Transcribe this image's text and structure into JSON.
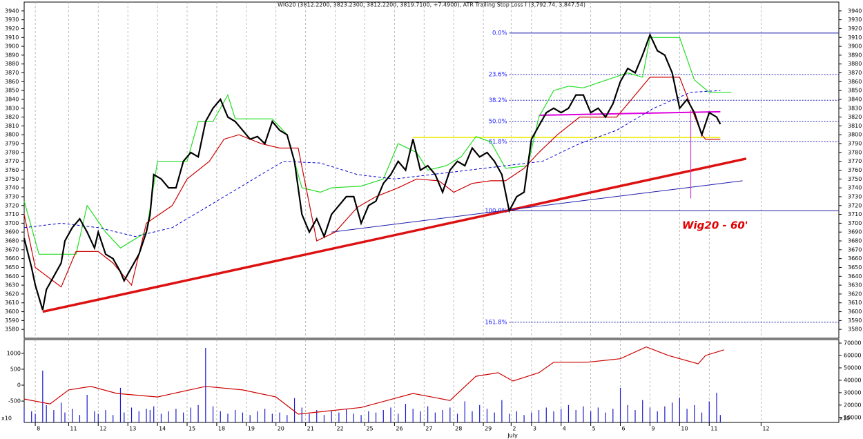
{
  "chart_data": [
    {
      "type": "line",
      "title": "WIG20 (3812.2200, 3823.2300, 3812.2200, 3819.7100, +7.4900), ATR Trailing Stop Loss I (3,792.74, 3,847.54)",
      "xlim": [
        0,
        220
      ],
      "ylim": [
        3570,
        3950
      ],
      "yticks": [
        3580,
        3590,
        3600,
        3610,
        3620,
        3630,
        3640,
        3650,
        3660,
        3670,
        3680,
        3690,
        3700,
        3710,
        3720,
        3730,
        3740,
        3750,
        3760,
        3770,
        3780,
        3790,
        3800,
        3810,
        3820,
        3830,
        3840,
        3850,
        3860,
        3870,
        3880,
        3890,
        3900,
        3910,
        3920,
        3930,
        3940
      ],
      "series": [
        {
          "color": "#22dd22",
          "width": 1.2,
          "dash": "",
          "x": [
            0,
            4,
            14,
            17,
            22,
            26,
            33,
            36,
            44,
            47,
            51,
            55,
            57,
            67,
            71,
            75,
            80,
            83,
            91,
            97,
            101,
            106,
            109,
            114,
            118,
            122,
            126,
            130,
            136,
            139,
            143,
            147,
            151,
            163,
            167,
            169,
            177,
            181,
            185,
            191
          ],
          "values": [
            3725,
            3665,
            3665,
            3720,
            3690,
            3672,
            3690,
            3770,
            3770,
            3815,
            3815,
            3845,
            3818,
            3818,
            3800,
            3740,
            3735,
            3740,
            3742,
            3750,
            3790,
            3780,
            3760,
            3765,
            3775,
            3798,
            3792,
            3762,
            3765,
            3820,
            3850,
            3855,
            3853,
            3870,
            3865,
            3910,
            3910,
            3862,
            3848,
            3848
          ]
        },
        {
          "color": "#cc0000",
          "width": 1.2,
          "dash": "",
          "x": [
            0,
            3,
            10,
            14,
            20,
            24,
            29,
            33,
            40,
            44,
            50,
            54,
            58,
            64,
            69,
            74,
            79,
            84,
            90,
            95,
            101,
            106,
            112,
            116,
            121,
            126,
            130,
            135,
            139,
            144,
            150,
            160,
            165,
            169,
            177,
            183,
            184,
            188
          ],
          "values": [
            3710,
            3650,
            3628,
            3668,
            3668,
            3655,
            3630,
            3700,
            3720,
            3750,
            3770,
            3795,
            3800,
            3790,
            3785,
            3785,
            3680,
            3690,
            3718,
            3730,
            3740,
            3750,
            3748,
            3735,
            3745,
            3748,
            3748,
            3762,
            3780,
            3800,
            3820,
            3820,
            3845,
            3865,
            3865,
            3800,
            3795,
            3795
          ]
        },
        {
          "color": "#0000cc",
          "width": 1,
          "dash": "4 3",
          "x": [
            0,
            10,
            20,
            30,
            40,
            50,
            60,
            70,
            80,
            90,
            100,
            110,
            120,
            130,
            140,
            150,
            160,
            170,
            180,
            188
          ],
          "values": [
            3695,
            3700,
            3695,
            3685,
            3695,
            3720,
            3745,
            3770,
            3768,
            3755,
            3750,
            3755,
            3760,
            3765,
            3770,
            3790,
            3805,
            3830,
            3848,
            3850
          ]
        },
        {
          "color": "#000000",
          "width": 2.2,
          "dash": "",
          "x": [
            0,
            2,
            3,
            5,
            6,
            8,
            10,
            11,
            13,
            15,
            17,
            19,
            20,
            22,
            24,
            26,
            27,
            29,
            31,
            33,
            34,
            35,
            37,
            39,
            41,
            43,
            45,
            47,
            49,
            51,
            53,
            55,
            57,
            59,
            61,
            63,
            65,
            67,
            69,
            71,
            73,
            75,
            77,
            79,
            81,
            83,
            85,
            87,
            89,
            91,
            93,
            95,
            97,
            99,
            101,
            103,
            105,
            107,
            109,
            111,
            113,
            115,
            117,
            119,
            121,
            123,
            125,
            127,
            129,
            131,
            133,
            135,
            137,
            139,
            141,
            143,
            145,
            147,
            149,
            151,
            153,
            155,
            157,
            159,
            161,
            163,
            165,
            167,
            169,
            171,
            173,
            175,
            177,
            179,
            181,
            183,
            185,
            187,
            188
          ],
          "values": [
            3683,
            3650,
            3630,
            3602,
            3625,
            3640,
            3655,
            3680,
            3695,
            3705,
            3690,
            3672,
            3690,
            3665,
            3660,
            3645,
            3635,
            3650,
            3665,
            3690,
            3710,
            3755,
            3750,
            3740,
            3740,
            3770,
            3780,
            3775,
            3815,
            3830,
            3840,
            3820,
            3815,
            3805,
            3795,
            3798,
            3790,
            3815,
            3805,
            3800,
            3770,
            3710,
            3690,
            3705,
            3685,
            3710,
            3720,
            3730,
            3730,
            3700,
            3720,
            3725,
            3745,
            3755,
            3770,
            3760,
            3795,
            3760,
            3765,
            3755,
            3735,
            3760,
            3770,
            3765,
            3785,
            3775,
            3780,
            3770,
            3755,
            3714,
            3730,
            3735,
            3795,
            3810,
            3825,
            3830,
            3825,
            3830,
            3845,
            3845,
            3825,
            3830,
            3820,
            3835,
            3860,
            3875,
            3870,
            3890,
            3913,
            3895,
            3890,
            3870,
            3830,
            3840,
            3825,
            3800,
            3825,
            3820,
            3812
          ]
        }
      ],
      "trendlines": [
        {
          "color": "#dd1111",
          "width": 3.5,
          "x": [
            5,
            195
          ],
          "values": [
            3600,
            3773
          ]
        },
        {
          "color": "#1a1aa8",
          "width": 1,
          "x": [
            83,
            194
          ],
          "values": [
            3690,
            3748
          ]
        },
        {
          "color": "#eeee00",
          "width": 1.5,
          "x": [
            105,
            188
          ],
          "values": [
            3797,
            3797
          ]
        },
        {
          "color": "#dd00dd",
          "width": 2,
          "x": [
            139,
            188
          ],
          "values": [
            3822,
            3826
          ]
        },
        {
          "color": "#cc44cc",
          "width": 1.2,
          "x": [
            180,
            180
          ],
          "values": [
            3828,
            3728
          ]
        }
      ],
      "fib_start": 131,
      "fib_end": 220,
      "fib_levels": [
        {
          "label": "0.0%",
          "value": 3915,
          "style": "solid"
        },
        {
          "label": "23.6%",
          "value": 3868,
          "style": "dotted"
        },
        {
          "label": "38.2%",
          "value": 3839,
          "style": "dotted"
        },
        {
          "label": "50.0%",
          "value": 3815,
          "style": "dotted"
        },
        {
          "label": "61.8%",
          "value": 3792,
          "style": "dotted"
        },
        {
          "label": "100.0%",
          "value": 3714,
          "style": "solid"
        },
        {
          "label": "161.8%",
          "value": 3588,
          "style": "dotted"
        }
      ],
      "annotation": "Wig20 - 60'"
    },
    {
      "type": "bar",
      "xlim": [
        0,
        220
      ],
      "ylim": [
        -1170,
        1430
      ],
      "y2lim": [
        6000,
        72800
      ],
      "yticks": [
        -500,
        0,
        500,
        1000
      ],
      "y2ticks": [
        10000,
        20000,
        30000,
        40000,
        50000,
        60000,
        70000
      ],
      "unit_label": "x10",
      "xticks": [
        {
          "value": 3,
          "label": "8"
        },
        {
          "value": 12,
          "label": "11"
        },
        {
          "value": 20,
          "label": "12"
        },
        {
          "value": 28,
          "label": "13"
        },
        {
          "value": 36,
          "label": "14"
        },
        {
          "value": 44,
          "label": "15"
        },
        {
          "value": 52,
          "label": "18"
        },
        {
          "value": 60,
          "label": "19"
        },
        {
          "value": 68,
          "label": "20"
        },
        {
          "value": 76,
          "label": "21"
        },
        {
          "value": 84,
          "label": "22"
        },
        {
          "value": 92,
          "label": "25"
        },
        {
          "value": 100,
          "label": "26"
        },
        {
          "value": 108,
          "label": "27"
        },
        {
          "value": 116,
          "label": "28"
        },
        {
          "value": 124,
          "label": "29"
        },
        {
          "value": 131.5,
          "label": "2"
        },
        {
          "value": 137,
          "label": "3"
        },
        {
          "value": 145,
          "label": "4"
        },
        {
          "value": 153,
          "label": "5"
        },
        {
          "value": 161,
          "label": "6"
        },
        {
          "value": 169,
          "label": "9"
        },
        {
          "value": 177,
          "label": "10"
        },
        {
          "value": 185,
          "label": "11"
        },
        {
          "value": 199,
          "label": "12"
        }
      ],
      "month_label": "July",
      "series": [
        {
          "style": "bar",
          "axis": "y2",
          "color": "#1a1acc",
          "x": [
            0,
            2,
            3,
            5,
            6,
            8,
            10,
            11,
            13,
            15,
            17,
            19,
            20,
            22,
            24,
            26,
            27,
            29,
            31,
            33,
            34,
            35,
            37,
            39,
            41,
            43,
            45,
            47,
            49,
            51,
            53,
            55,
            57,
            59,
            61,
            63,
            65,
            67,
            69,
            71,
            73,
            75,
            77,
            79,
            81,
            83,
            85,
            87,
            89,
            91,
            93,
            95,
            97,
            99,
            101,
            103,
            105,
            107,
            109,
            111,
            113,
            115,
            117,
            119,
            121,
            123,
            125,
            127,
            129,
            131,
            133,
            135,
            137,
            139,
            141,
            143,
            145,
            147,
            149,
            151,
            153,
            155,
            157,
            159,
            161,
            163,
            165,
            167,
            169,
            171,
            173,
            175,
            177,
            179,
            181,
            183,
            185,
            187,
            188
          ],
          "values": [
            18000,
            15000,
            13000,
            47800,
            20000,
            16000,
            22000,
            14000,
            17000,
            12000,
            28300,
            15000,
            13000,
            16000,
            12000,
            33900,
            14000,
            18000,
            15000,
            17000,
            16000,
            19000,
            13000,
            15000,
            17000,
            14000,
            18000,
            20000,
            66100,
            19000,
            15000,
            13000,
            16000,
            14000,
            12000,
            15000,
            17000,
            13000,
            14000,
            12000,
            25600,
            18000,
            13000,
            16000,
            12000,
            15000,
            14000,
            17000,
            13000,
            12000,
            15000,
            14000,
            16000,
            18000,
            13000,
            21000,
            17000,
            15000,
            19000,
            14000,
            16000,
            18000,
            13000,
            23000,
            15000,
            20000,
            17000,
            14000,
            24000,
            13000,
            15000,
            12000,
            14000,
            16000,
            18000,
            15000,
            17000,
            20000,
            16000,
            19000,
            15000,
            18000,
            14000,
            17000,
            33900,
            20000,
            16000,
            24000,
            18000,
            15000,
            19000,
            22000,
            26000,
            17000,
            20000,
            14000,
            23000,
            30000,
            12000
          ]
        },
        {
          "style": "line",
          "axis": "y",
          "color": "#cc0000",
          "x": [
            0,
            7,
            12,
            18,
            25,
            36,
            49,
            59,
            68,
            74,
            83,
            91,
            98,
            105,
            115,
            122,
            128,
            132,
            139,
            143,
            152,
            161,
            168,
            174,
            182,
            184,
            189
          ],
          "values": [
            -435,
            -590,
            -150,
            -40,
            -260,
            -370,
            -40,
            -150,
            -370,
            -910,
            -800,
            -700,
            -480,
            -260,
            -480,
            280,
            390,
            130,
            390,
            720,
            720,
            830,
            1200,
            930,
            670,
            930,
            1110
          ]
        }
      ]
    }
  ]
}
